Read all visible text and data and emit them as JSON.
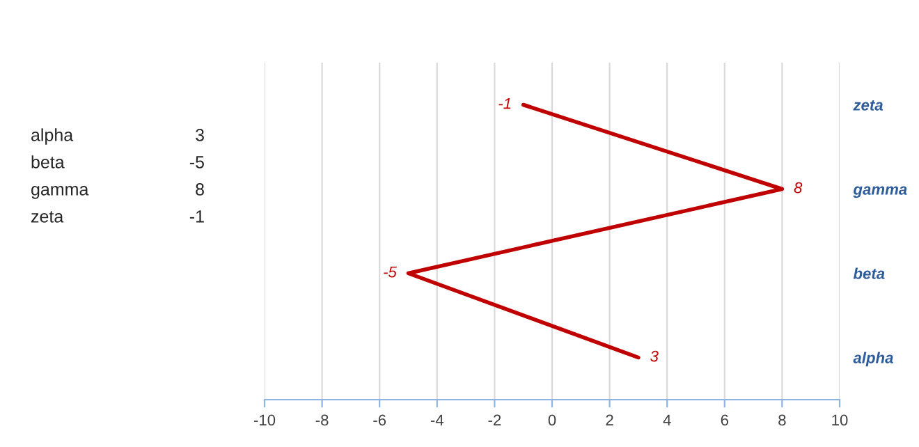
{
  "chart_data": {
    "type": "line",
    "orientation": "horizontal",
    "categories": [
      "zeta",
      "gamma",
      "beta",
      "alpha"
    ],
    "series": [
      {
        "color": "#c00000",
        "values": [
          -1,
          8,
          -5,
          3
        ]
      }
    ],
    "xlim": [
      -10,
      10
    ],
    "xticks": [
      -10,
      -8,
      -6,
      -4,
      -2,
      0,
      2,
      4,
      6,
      8,
      10
    ],
    "annotations": [
      "alpha",
      "3",
      "beta",
      "-5",
      "gamma",
      "8",
      "zeta",
      "-1"
    ],
    "grid": "x",
    "data_labels": true,
    "marker": "none",
    "line_style": "solid"
  }
}
